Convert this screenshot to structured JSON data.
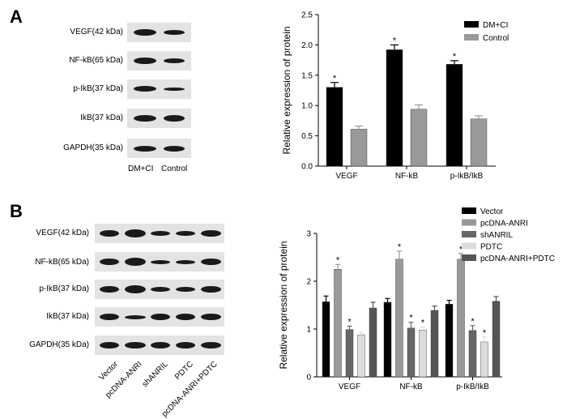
{
  "panel_a": {
    "letter": "A",
    "blot": {
      "rows": [
        "VEGF(42 kDa)",
        "NF-kB(65 kDa)",
        "p-IkB(37 kDa)",
        "IkB(37 kDa)",
        "GAPDH(35 kDa)"
      ],
      "lanes": [
        "DM+CI",
        "Control"
      ]
    }
  },
  "panel_b": {
    "letter": "B",
    "blot": {
      "rows": [
        "VEGF(42 kDa)",
        "NF-kB(65 kDa)",
        "p-IkB(37 kDa)",
        "IkB(37 kDa)",
        "GAPDH(35 kDa)"
      ],
      "lanes": [
        "Vector",
        "pcDNA-ANRI",
        "shANRIL",
        "PDTC",
        "pcDNA-ANRI+PDTC"
      ]
    }
  },
  "chart_data": [
    {
      "type": "bar",
      "categories": [
        "VEGF",
        "NF-kB",
        "p-IkB/IkB"
      ],
      "series": [
        {
          "name": "DM+CI",
          "values": [
            1.3,
            1.92,
            1.68
          ],
          "errors": [
            0.08,
            0.08,
            0.06
          ],
          "sig": [
            true,
            true,
            true
          ],
          "color": "#000000"
        },
        {
          "name": "Control",
          "values": [
            0.61,
            0.94,
            0.78
          ],
          "errors": [
            0.05,
            0.07,
            0.05
          ],
          "sig": [
            false,
            false,
            false
          ],
          "color": "#999999"
        }
      ],
      "xlabel": "",
      "ylabel": "Relative expression of protein",
      "ylim": [
        0,
        2.5
      ],
      "yticks": [
        "0.0",
        "0.5",
        "1.0",
        "1.5",
        "2.0",
        "2.5"
      ],
      "legend": "top-right",
      "sig_mark": "*"
    },
    {
      "type": "bar",
      "categories": [
        "VEGF",
        "NF-kB",
        "p-IkB/IkB"
      ],
      "series": [
        {
          "name": "Vector",
          "values": [
            1.57,
            1.56,
            1.52
          ],
          "errors": [
            0.12,
            0.08,
            0.08
          ],
          "sig": [
            false,
            false,
            false
          ],
          "color": "#000000"
        },
        {
          "name": "pcDNA-ANRI",
          "values": [
            2.25,
            2.46,
            2.46
          ],
          "errors": [
            0.1,
            0.17,
            0.12
          ],
          "sig": [
            true,
            true,
            true
          ],
          "color": "#999999"
        },
        {
          "name": "shANRIL",
          "values": [
            0.99,
            1.02,
            0.97
          ],
          "errors": [
            0.07,
            0.12,
            0.1
          ],
          "sig": [
            true,
            true,
            true
          ],
          "color": "#666666"
        },
        {
          "name": "PDTC",
          "values": [
            0.88,
            0.98,
            0.73
          ],
          "errors": [
            0.05,
            0.06,
            0.1
          ],
          "sig": [
            false,
            true,
            true
          ],
          "color": "#dddddd"
        },
        {
          "name": "pcDNA-ANRI+PDTC",
          "values": [
            1.44,
            1.39,
            1.58
          ],
          "errors": [
            0.12,
            0.09,
            0.1
          ],
          "sig": [
            false,
            false,
            false
          ],
          "color": "#555555"
        }
      ],
      "xlabel": "",
      "ylabel": "Relative expression of protein",
      "ylim": [
        0,
        3
      ],
      "yticks": [
        "0",
        "1",
        "2",
        "3"
      ],
      "legend": "top-right",
      "sig_mark": "*"
    }
  ]
}
